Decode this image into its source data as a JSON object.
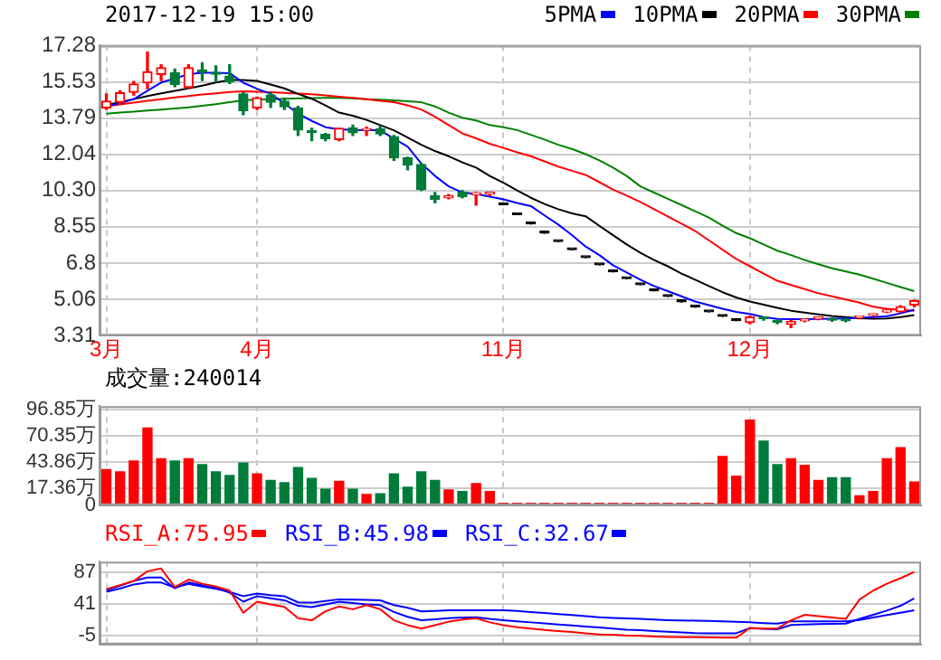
{
  "chart_data": [
    {
      "type": "candlestick",
      "title": "2017-12-19 15:00",
      "legend": "top right",
      "grid": true,
      "categories": [
        "3月",
        null,
        null,
        null,
        null,
        null,
        null,
        null,
        null,
        null,
        null,
        "4月",
        null,
        null,
        null,
        null,
        null,
        null,
        null,
        null,
        null,
        null,
        null,
        null,
        null,
        null,
        null,
        null,
        null,
        "11月",
        null,
        null,
        null,
        null,
        null,
        null,
        null,
        null,
        null,
        null,
        null,
        null,
        null,
        null,
        null,
        null,
        null,
        "12月",
        null,
        null,
        null,
        null,
        null,
        null,
        null,
        null,
        null,
        null,
        null,
        null
      ],
      "ohlc": [
        [
          14.28,
          14.95,
          14.2,
          14.6
        ],
        [
          14.55,
          15.1,
          14.45,
          15.0
        ],
        [
          15.03,
          15.55,
          14.9,
          15.43
        ],
        [
          15.49,
          16.96,
          15.2,
          16.02
        ],
        [
          15.89,
          16.35,
          15.6,
          16.21
        ],
        [
          15.97,
          16.15,
          15.3,
          15.41
        ],
        [
          15.27,
          16.35,
          15.2,
          16.21
        ],
        [
          16.1,
          16.45,
          15.6,
          16.0
        ],
        [
          15.98,
          16.3,
          15.55,
          15.9
        ],
        [
          15.81,
          16.35,
          15.45,
          15.54
        ],
        [
          14.95,
          15.0,
          13.95,
          14.15
        ],
        [
          14.28,
          14.8,
          14.2,
          14.76
        ],
        [
          14.9,
          15.0,
          14.3,
          14.55
        ],
        [
          14.6,
          14.75,
          14.2,
          14.33
        ],
        [
          14.28,
          14.35,
          12.95,
          13.21
        ],
        [
          13.15,
          13.3,
          12.7,
          13.1
        ],
        [
          13.0,
          13.05,
          12.7,
          12.8
        ],
        [
          12.75,
          13.3,
          12.7,
          13.29
        ],
        [
          13.32,
          13.45,
          12.95,
          13.08
        ],
        [
          13.2,
          13.35,
          12.95,
          13.24
        ],
        [
          13.27,
          13.4,
          12.95,
          13.03
        ],
        [
          12.89,
          12.95,
          11.75,
          11.87
        ],
        [
          11.87,
          11.9,
          11.3,
          11.52
        ],
        [
          11.55,
          11.6,
          10.3,
          10.35
        ],
        [
          10.05,
          10.2,
          9.7,
          9.87
        ],
        [
          9.95,
          10.1,
          9.9,
          10.05
        ],
        [
          10.21,
          10.3,
          9.95,
          10.0
        ],
        [
          10.1,
          10.2,
          9.6,
          10.13
        ],
        [
          10.13,
          10.2,
          10.05,
          10.15
        ],
        [
          9.62,
          9.62,
          9.62,
          9.62
        ],
        [
          9.14,
          9.14,
          9.14,
          9.14
        ],
        [
          8.69,
          8.69,
          8.69,
          8.69
        ],
        [
          8.25,
          8.25,
          8.25,
          8.25
        ],
        [
          7.84,
          7.84,
          7.84,
          7.84
        ],
        [
          7.45,
          7.45,
          7.45,
          7.45
        ],
        [
          7.07,
          7.07,
          7.07,
          7.07
        ],
        [
          6.72,
          6.72,
          6.72,
          6.72
        ],
        [
          6.38,
          6.38,
          6.38,
          6.38
        ],
        [
          6.06,
          6.06,
          6.06,
          6.06
        ],
        [
          5.76,
          5.76,
          5.76,
          5.76
        ],
        [
          5.47,
          5.47,
          5.47,
          5.47
        ],
        [
          5.2,
          5.2,
          5.2,
          5.2
        ],
        [
          4.94,
          4.94,
          4.94,
          4.94
        ],
        [
          4.69,
          4.69,
          4.69,
          4.69
        ],
        [
          4.46,
          4.46,
          4.46,
          4.46
        ],
        [
          4.24,
          4.24,
          4.24,
          4.24
        ],
        [
          4.03,
          4.03,
          4.03,
          4.03
        ],
        [
          3.95,
          4.25,
          3.88,
          4.2
        ],
        [
          4.17,
          4.2,
          4.05,
          4.12
        ],
        [
          4.0,
          4.05,
          3.88,
          3.95
        ],
        [
          3.85,
          4.05,
          3.7,
          4.0
        ],
        [
          4.02,
          4.12,
          3.98,
          4.08
        ],
        [
          4.12,
          4.2,
          4.08,
          4.17
        ],
        [
          4.1,
          4.15,
          4.0,
          4.05
        ],
        [
          4.08,
          4.12,
          3.98,
          4.02
        ],
        [
          4.17,
          4.22,
          4.12,
          4.2
        ],
        [
          4.28,
          4.34,
          4.24,
          4.32
        ],
        [
          4.45,
          4.55,
          4.42,
          4.52
        ],
        [
          4.46,
          4.75,
          4.42,
          4.7
        ],
        [
          4.78,
          5.02,
          4.7,
          4.99
        ]
      ],
      "colors": [
        "#ff0000",
        "#ff0000",
        "#ff0000",
        "#ff0000",
        "#ff0000",
        "#007b3a",
        "#ff0000",
        "#007b3a",
        "#007b3a",
        "#007b3a",
        "#007b3a",
        "#ff0000",
        "#007b3a",
        "#007b3a",
        "#007b3a",
        "#007b3a",
        "#007b3a",
        "#ff0000",
        "#007b3a",
        "#ff0000",
        "#007b3a",
        "#007b3a",
        "#007b3a",
        "#007b3a",
        "#007b3a",
        "#ff0000",
        "#007b3a",
        "#ff0000",
        "#ff0000",
        "#000000",
        "#000000",
        "#000000",
        "#000000",
        "#000000",
        "#000000",
        "#000000",
        "#000000",
        "#000000",
        "#000000",
        "#000000",
        "#000000",
        "#000000",
        "#000000",
        "#000000",
        "#000000",
        "#000000",
        "#000000",
        "#ff0000",
        "#007b3a",
        "#007b3a",
        "#ff0000",
        "#ff0000",
        "#ff0000",
        "#007b3a",
        "#007b3a",
        "#ff0000",
        "#ff0000",
        "#ff0000",
        "#ff0000",
        "#ff0000"
      ],
      "ylim": [
        3.31,
        17.28
      ],
      "yticks": [
        3.31,
        5.06,
        6.8,
        {
          "value": 8.55,
          "label": "8.55"
        },
        {
          "value": 10.3,
          "label": "10.30"
        },
        12.04,
        13.79,
        15.53,
        17.28
      ],
      "series": [
        {
          "name": "5PMA",
          "type": "line",
          "color": "#0000ff",
          "values": [
            14.36,
            14.5,
            14.7,
            15.1,
            15.5,
            15.7,
            15.9,
            15.97,
            15.97,
            15.95,
            15.49,
            15.2,
            14.95,
            14.5,
            14.0,
            13.65,
            13.35,
            13.25,
            13.21,
            13.2,
            13.2,
            12.8,
            12.41,
            11.6,
            11.0,
            10.5,
            10.2,
            10.13,
            10.0,
            9.87,
            9.7,
            9.55,
            9.1,
            8.66,
            8.15,
            7.6,
            7.19,
            6.7,
            6.35,
            6.0,
            5.7,
            5.45,
            5.2,
            4.95,
            4.78,
            4.6,
            4.45,
            4.35,
            4.2,
            4.11,
            4.1,
            4.1,
            4.11,
            4.12,
            4.14,
            4.17,
            4.2,
            4.24,
            4.38,
            4.56
          ]
        },
        {
          "name": "10PMA",
          "type": "line",
          "color": "#000000",
          "values": [
            14.42,
            14.55,
            14.7,
            14.85,
            14.98,
            15.1,
            15.22,
            15.35,
            15.5,
            15.62,
            15.62,
            15.58,
            15.4,
            15.22,
            14.95,
            14.72,
            14.4,
            14.05,
            13.9,
            13.7,
            13.45,
            13.2,
            12.85,
            12.5,
            12.2,
            11.95,
            11.65,
            11.4,
            11.0,
            10.67,
            10.3,
            9.95,
            9.65,
            9.4,
            9.2,
            9.06,
            8.6,
            8.15,
            7.7,
            7.3,
            6.95,
            6.65,
            6.3,
            6.0,
            5.7,
            5.4,
            5.15,
            4.95,
            4.8,
            4.65,
            4.51,
            4.42,
            4.33,
            4.25,
            4.2,
            4.15,
            4.12,
            4.14,
            4.2,
            4.3
          ]
        },
        {
          "name": "20PMA",
          "type": "line",
          "color": "#ff0000",
          "values": [
            14.36,
            14.45,
            14.53,
            14.62,
            14.7,
            14.78,
            14.85,
            14.92,
            14.98,
            15.04,
            15.08,
            15.06,
            15.03,
            15.0,
            14.97,
            14.93,
            14.88,
            14.82,
            14.76,
            14.7,
            14.62,
            14.55,
            14.4,
            14.2,
            13.85,
            13.45,
            13.05,
            12.81,
            12.55,
            12.35,
            12.14,
            11.95,
            11.7,
            11.45,
            11.25,
            11.05,
            10.7,
            10.35,
            10.05,
            9.75,
            9.4,
            9.05,
            8.7,
            8.35,
            7.9,
            7.45,
            7.0,
            6.65,
            6.3,
            5.95,
            5.75,
            5.55,
            5.35,
            5.2,
            5.05,
            4.9,
            4.7,
            4.6,
            4.55,
            4.51
          ]
        },
        {
          "name": "30PMA",
          "type": "line",
          "color": "#008000",
          "values": [
            14.0,
            14.05,
            14.1,
            14.15,
            14.2,
            14.25,
            14.3,
            14.38,
            14.46,
            14.55,
            14.64,
            14.68,
            14.7,
            14.72,
            14.74,
            14.75,
            14.76,
            14.76,
            14.74,
            14.7,
            14.67,
            14.64,
            14.6,
            14.55,
            14.35,
            14.05,
            13.8,
            13.67,
            13.45,
            13.35,
            13.21,
            12.98,
            12.75,
            12.5,
            12.3,
            12.05,
            11.75,
            11.4,
            11.0,
            10.5,
            10.2,
            9.9,
            9.6,
            9.3,
            9.0,
            8.6,
            8.25,
            8.0,
            7.7,
            7.4,
            7.19,
            6.95,
            6.75,
            6.55,
            6.4,
            6.25,
            6.05,
            5.85,
            5.65,
            5.45
          ]
        }
      ]
    },
    {
      "type": "bar",
      "title": "成交量:240014",
      "grid": true,
      "tick_labels": "y",
      "categories": [
        null,
        null,
        null,
        null,
        null,
        null,
        null,
        null,
        null,
        null,
        null,
        null,
        null,
        null,
        null,
        null,
        null,
        null,
        null,
        null,
        null,
        null,
        null,
        null,
        null,
        null,
        null,
        null,
        null,
        null,
        null,
        null,
        null,
        null,
        null,
        null,
        null,
        null,
        null,
        null,
        null,
        null,
        null,
        null,
        null,
        null,
        null,
        null,
        null,
        null,
        null,
        null,
        null,
        null,
        null,
        null,
        null,
        null,
        null,
        null
      ],
      "values": [
        36.5,
        34.3,
        45.3,
        78.4,
        47.5,
        45.3,
        47.5,
        41.6,
        34.3,
        30.6,
        43.1,
        32.1,
        25.5,
        23.2,
        38.7,
        27.7,
        16.6,
        24.7,
        16.6,
        11.5,
        12.2,
        32.1,
        18.8,
        34.3,
        25.5,
        15.9,
        14.4,
        22.5,
        14.4,
        2.6,
        2.6,
        2.6,
        2.6,
        2.6,
        2.6,
        2.6,
        2.6,
        2.6,
        2.6,
        2.6,
        2.6,
        2.6,
        2.6,
        2.6,
        2.6,
        49.7,
        29.9,
        86.6,
        65.2,
        41.6,
        47.5,
        40.9,
        25.5,
        28.4,
        28.4,
        10.0,
        14.4,
        47.5,
        58.6,
        24.0
      ],
      "colors": [
        "#ff0000",
        "#ff0000",
        "#ff0000",
        "#ff0000",
        "#ff0000",
        "#007b3a",
        "#ff0000",
        "#007b3a",
        "#007b3a",
        "#007b3a",
        "#007b3a",
        "#ff0000",
        "#007b3a",
        "#007b3a",
        "#007b3a",
        "#007b3a",
        "#007b3a",
        "#ff0000",
        "#007b3a",
        "#ff0000",
        "#007b3a",
        "#007b3a",
        "#007b3a",
        "#007b3a",
        "#007b3a",
        "#ff0000",
        "#007b3a",
        "#ff0000",
        "#ff0000",
        "#ff0000",
        "#ff0000",
        "#ff0000",
        "#ff0000",
        "#ff0000",
        "#ff0000",
        "#ff0000",
        "#ff0000",
        "#ff0000",
        "#ff0000",
        "#ff0000",
        "#ff0000",
        "#ff0000",
        "#ff0000",
        "#ff0000",
        "#ff0000",
        "#ff0000",
        "#ff0000",
        "#ff0000",
        "#007b3a",
        "#007b3a",
        "#ff0000",
        "#ff0000",
        "#ff0000",
        "#007b3a",
        "#007b3a",
        "#ff0000",
        "#ff0000",
        "#ff0000",
        "#ff0000",
        "#ff0000"
      ],
      "ylim": [
        0,
        100
      ],
      "yticks": [
        0,
        {
          "value": 17.36,
          "label": "17.36万"
        },
        {
          "value": 43.86,
          "label": "43.86万"
        },
        {
          "value": 70.35,
          "label": "70.35万"
        },
        {
          "value": 96.85,
          "label": "96.85万"
        }
      ]
    },
    {
      "type": "line",
      "legend": "top left",
      "grid": true,
      "tick_labels": "y",
      "categories": [
        null,
        null,
        null,
        null,
        null,
        null,
        null,
        null,
        null,
        null,
        null,
        null,
        null,
        null,
        null,
        null,
        null,
        null,
        null,
        null,
        null,
        null,
        null,
        null,
        null,
        null,
        null,
        null,
        null,
        null,
        null,
        null,
        null,
        null,
        null,
        null,
        null,
        null,
        null,
        null,
        null,
        null,
        null,
        null,
        null,
        null,
        null,
        null,
        null,
        null,
        null,
        null,
        null,
        null,
        null,
        null,
        null,
        null,
        null,
        null
      ],
      "ylim": [
        -18,
        102
      ],
      "yticks": [
        -5,
        41,
        87
      ],
      "series": [
        {
          "name": "RSI_A:75.95",
          "color": "#ff0000",
          "values": [
            62.1,
            68,
            74,
            88,
            92,
            65,
            76,
            70,
            66,
            60,
            28,
            44,
            40,
            36.5,
            20,
            17,
            30,
            37,
            33,
            39,
            33,
            17,
            10,
            5,
            10,
            15,
            18,
            20,
            14,
            10,
            7,
            5,
            3,
            1.5,
            0,
            -2,
            -3.5,
            -4,
            -5,
            -5.5,
            -6.5,
            -7,
            -7.3,
            -7.6,
            -7.9,
            -8.1,
            -8.2,
            6,
            5,
            5,
            17,
            25,
            23,
            21,
            19,
            47,
            60,
            70,
            78,
            87
          ]
        },
        {
          "name": "RSI_B:45.98",
          "color": "#0000ff",
          "values": [
            60.2,
            67,
            74,
            79,
            79,
            63.4,
            71.7,
            68,
            65,
            57,
            44,
            52,
            49,
            46,
            38,
            36,
            40,
            44,
            42,
            40,
            39,
            29,
            22,
            17,
            18.5,
            20,
            21,
            21.5,
            19,
            17,
            15.4,
            14,
            12.5,
            11,
            9.5,
            8,
            6.5,
            5,
            3.5,
            2.6,
            1.5,
            0.5,
            -0.5,
            -1.5,
            -1.8,
            -1.8,
            -1.8,
            5.8,
            4.5,
            4,
            10.3,
            11,
            11.5,
            12,
            12.2,
            19,
            25,
            31,
            38,
            48.7
          ]
        },
        {
          "name": "RSI_C:32.67",
          "color": "#0000ff",
          "values": [
            58.2,
            63,
            69,
            71.7,
            71.7,
            64.6,
            69.7,
            66,
            62.5,
            58,
            52,
            55.7,
            53.5,
            51.9,
            43,
            42.5,
            45,
            47.4,
            47,
            46.5,
            46,
            39,
            35,
            30,
            30.7,
            31.4,
            31.4,
            31.4,
            31.4,
            31.4,
            30.5,
            29,
            27.5,
            26,
            24.5,
            23,
            21.5,
            20.5,
            19.8,
            19,
            18,
            17.2,
            16.8,
            16.5,
            16,
            15.5,
            14.8,
            14.2,
            13,
            12.2,
            15.4,
            15.4,
            15.4,
            15.4,
            15.4,
            17.5,
            21,
            24.5,
            28,
            31.4
          ]
        }
      ]
    }
  ]
}
